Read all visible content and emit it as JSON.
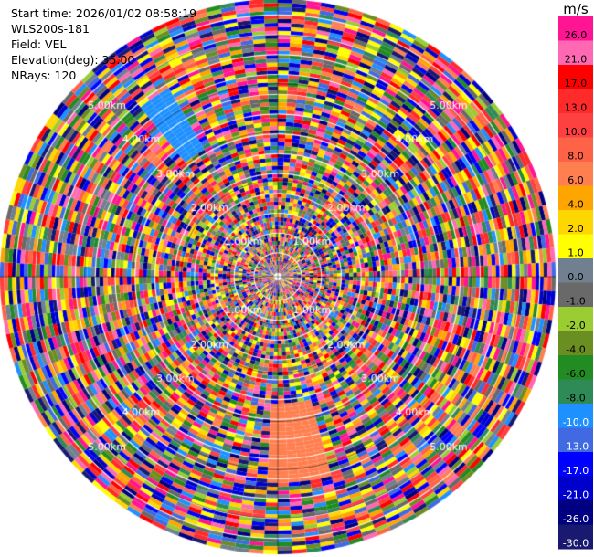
{
  "info": {
    "start_time": "Start time: 2026/01/02 08:58:19",
    "site": "WLS200s-181",
    "field": "Field: VEL",
    "elevation": "Elevation(deg): 35.00",
    "nrays": "NRays: 120"
  },
  "chart_data": {
    "type": "heatmap",
    "projection": "polar-ppi",
    "field": "VEL",
    "n_rays": 120,
    "range_rings_labels": [
      "1.00km",
      "2.00km",
      "3.00km",
      "4.00km",
      "5.00km"
    ],
    "colorbar": {
      "unit": "m/s",
      "tick_labels": [
        "26.0",
        "21.0",
        "17.0",
        "13.0",
        "10.0",
        "8.0",
        "6.0",
        "4.0",
        "2.0",
        "1.0",
        "0.0",
        "-1.0",
        "-2.0",
        "-4.0",
        "-6.0",
        "-8.0",
        "-10.0",
        "-13.0",
        "-17.0",
        "-21.0",
        "-26.0",
        "-30.0"
      ],
      "colors": [
        "#ff1493",
        "#ff69b4",
        "#ff0000",
        "#ff2a2a",
        "#ff4040",
        "#ff6347",
        "#ff7f50",
        "#ffa500",
        "#ffd700",
        "#ffff00",
        "#708090",
        "#696969",
        "#9acd32",
        "#6b8e23",
        "#228b22",
        "#2e8b57",
        "#1e90ff",
        "#4169e1",
        "#0000ff",
        "#0000cd",
        "#000080",
        "#191970"
      ]
    },
    "features": [
      {
        "description": "band of near -10 m/s at north-west",
        "azimuth_deg": [
          320,
          330
        ],
        "range_km": [
          3.0,
          4.5
        ],
        "value": -10.0
      },
      {
        "description": "band of near 6 m/s at south",
        "azimuth_deg": [
          165,
          182
        ],
        "range_km": [
          2.6,
          4.3
        ],
        "value": 6.0
      }
    ]
  }
}
